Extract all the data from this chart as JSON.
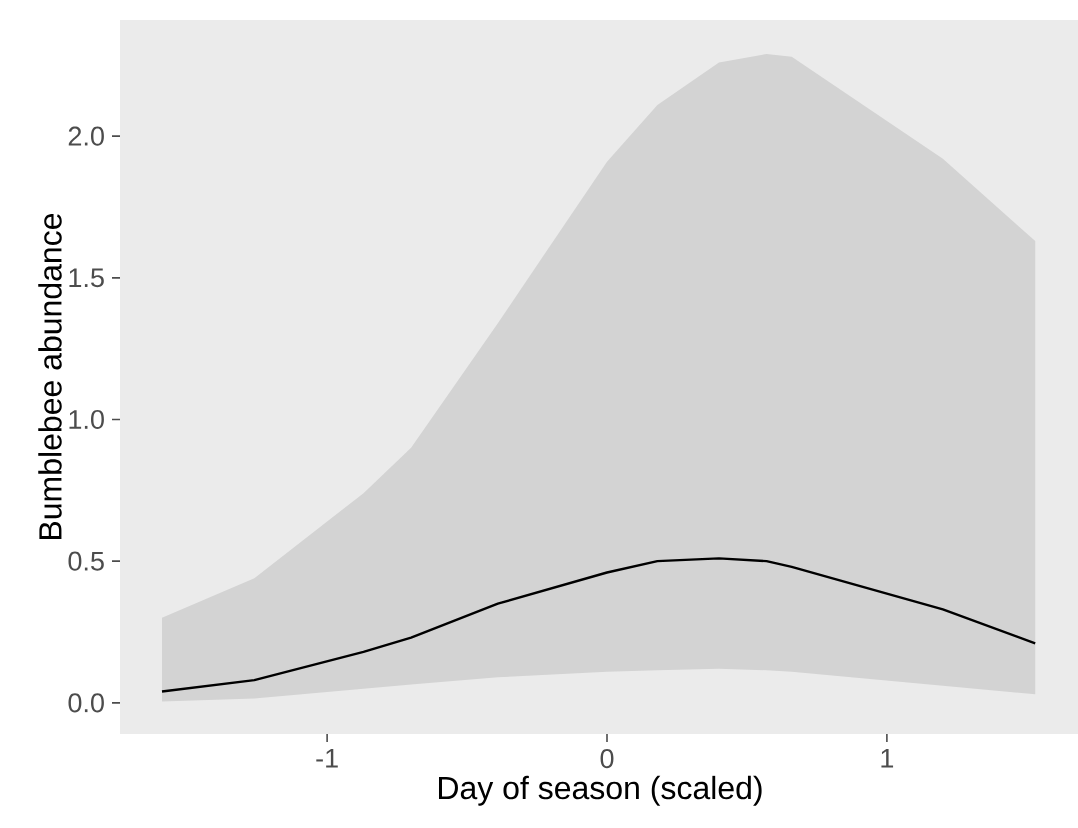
{
  "chart_data": {
    "type": "line",
    "xlabel": "Day of season (scaled)",
    "ylabel": "Bumblebee abundance",
    "x": [
      -1.59,
      -1.26,
      -0.87,
      -0.7,
      -0.39,
      0,
      0.18,
      0.4,
      0.57,
      0.66,
      1.2,
      1.53
    ],
    "series": [
      {
        "color": "#000000",
        "values": [
          0.04,
          0.08,
          0.18,
          0.23,
          0.35,
          0.46,
          0.5,
          0.51,
          0.5,
          0.48,
          0.33,
          0.21
        ],
        "lower": [
          0.005,
          0.015,
          0.05,
          0.065,
          0.09,
          0.11,
          0.115,
          0.12,
          0.115,
          0.11,
          0.06,
          0.03
        ],
        "upper": [
          0.3,
          0.44,
          0.74,
          0.9,
          1.34,
          1.91,
          2.11,
          2.26,
          2.29,
          2.28,
          1.92,
          1.63
        ]
      }
    ],
    "xlim": [
      -1.74,
      1.69
    ],
    "ylim": [
      -0.11,
      2.41
    ],
    "xticks": [
      -1,
      0,
      1
    ],
    "yticks": [
      {
        "value": 0,
        "label": "0.0"
      },
      {
        "value": 0.5,
        "label": "0.5"
      },
      {
        "value": 1,
        "label": "1.0"
      },
      {
        "value": 1.5,
        "label": "1.5"
      },
      {
        "value": 2,
        "label": "2.0"
      }
    ],
    "grid": false,
    "legend": false,
    "marker": "none",
    "line_style": "solid"
  }
}
